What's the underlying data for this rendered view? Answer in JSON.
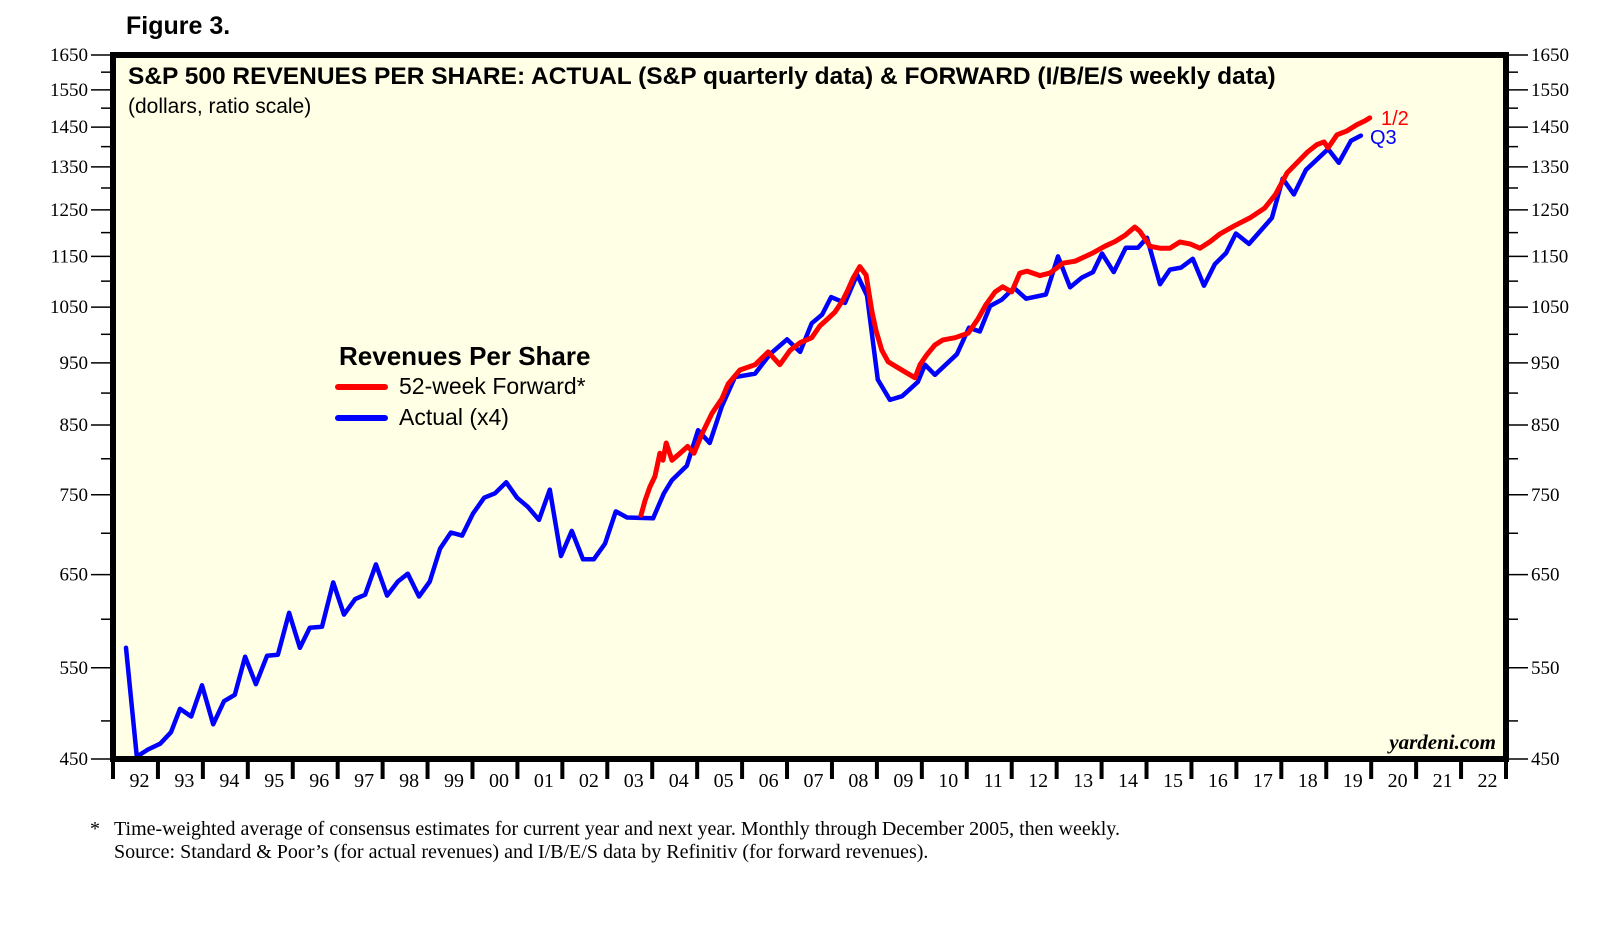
{
  "figure_label": "Figure 3.",
  "footnote": {
    "marker": "*",
    "line1": "Time-weighted average of consensus estimates for current year and next year. Monthly through December 2005, then weekly.",
    "line2": "Source: Standard & Poor’s (for actual revenues) and I/B/E/S data by Refinitiv (for forward revenues)."
  },
  "colors": {
    "background": "#ffffe6",
    "forward": "#ff0000",
    "actual": "#0000ff",
    "frame": "#000000"
  },
  "chart_data": {
    "type": "line",
    "title": "S&P 500 REVENUES PER SHARE: ACTUAL (S&P quarterly data) & FORWARD (I/B/E/S weekly data)",
    "subtitle": "(dollars, ratio scale)",
    "xlabel": "",
    "ylabel": "",
    "yscale": "log",
    "ylim": [
      467,
      1650
    ],
    "xlim": [
      1992,
      2023
    ],
    "y_ticks": [
      450,
      550,
      650,
      750,
      850,
      950,
      1050,
      1150,
      1250,
      1350,
      1450,
      1550,
      1650
    ],
    "x_tick_labels": [
      "92",
      "93",
      "94",
      "95",
      "96",
      "97",
      "98",
      "99",
      "00",
      "01",
      "02",
      "03",
      "04",
      "05",
      "06",
      "07",
      "08",
      "09",
      "10",
      "11",
      "12",
      "13",
      "14",
      "15",
      "16",
      "17",
      "18",
      "19",
      "20",
      "21",
      "22"
    ],
    "grid": false,
    "legend": {
      "title": "Revenues Per Share",
      "placement": "center-left",
      "entries": [
        {
          "label": "52-week Forward*",
          "series": "forward"
        },
        {
          "label": "Actual (x4)",
          "series": "actual"
        }
      ]
    },
    "annotations": [
      {
        "text": "1/2",
        "series": "forward"
      },
      {
        "text": "Q3",
        "series": "actual"
      }
    ],
    "watermark": "yardeni.com",
    "series": [
      {
        "name": "forward",
        "label": "52-week Forward*",
        "x": [
          2003.75,
          2003.84,
          2003.95,
          2004.06,
          2004.17,
          2004.24,
          2004.31,
          2004.44,
          2004.62,
          2004.79,
          2004.93,
          2005.11,
          2005.33,
          2005.55,
          2005.69,
          2005.95,
          2006.29,
          2006.58,
          2006.84,
          2007.07,
          2007.29,
          2007.55,
          2007.73,
          2007.89,
          2008.07,
          2008.24,
          2008.35,
          2008.47,
          2008.62,
          2008.76,
          2008.89,
          2008.98,
          2009.11,
          2009.25,
          2009.4,
          2009.62,
          2009.85,
          2009.96,
          2010.11,
          2010.29,
          2010.47,
          2010.74,
          2011.03,
          2011.25,
          2011.43,
          2011.63,
          2011.8,
          2012.0,
          2012.18,
          2012.34,
          2012.63,
          2012.85,
          2013.14,
          2013.41,
          2013.78,
          2014.07,
          2014.3,
          2014.52,
          2014.74,
          2014.85,
          2015.08,
          2015.3,
          2015.52,
          2015.74,
          2015.97,
          2016.19,
          2016.42,
          2016.63,
          2016.96,
          2017.3,
          2017.63,
          2017.87,
          2018.13,
          2018.35,
          2018.59,
          2018.79,
          2018.95,
          2019.04,
          2019.24,
          2019.46,
          2019.68,
          2019.86,
          2019.97
        ],
        "values": [
          723,
          742,
          761,
          775,
          808,
          798,
          823,
          798,
          808,
          818,
          808,
          837,
          868,
          891,
          915,
          938,
          947,
          969,
          947,
          972,
          985,
          994,
          1015,
          1027,
          1041,
          1063,
          1082,
          1106,
          1129,
          1112,
          1041,
          1007,
          972,
          952,
          945,
          935,
          925,
          947,
          964,
          981,
          990,
          994,
          1002,
          1028,
          1055,
          1079,
          1089,
          1079,
          1116,
          1120,
          1111,
          1116,
          1136,
          1140,
          1156,
          1171,
          1181,
          1194,
          1212,
          1203,
          1171,
          1167,
          1167,
          1180,
          1176,
          1167,
          1181,
          1197,
          1215,
          1232,
          1254,
          1285,
          1336,
          1360,
          1387,
          1405,
          1412,
          1397,
          1430,
          1440,
          1456,
          1466,
          1474
        ]
      },
      {
        "name": "actual",
        "label": "Actual (x4)",
        "x": [
          1992.29,
          1992.53,
          1992.78,
          1993.05,
          1993.29,
          1993.49,
          1993.74,
          1993.98,
          1994.23,
          1994.47,
          1994.71,
          1994.94,
          1995.18,
          1995.43,
          1995.67,
          1995.92,
          1996.16,
          1996.38,
          1996.65,
          1996.9,
          1997.14,
          1997.39,
          1997.61,
          1997.85,
          1998.1,
          1998.34,
          1998.56,
          1998.81,
          1999.05,
          1999.28,
          1999.52,
          1999.77,
          2000.01,
          2000.26,
          2000.5,
          2000.75,
          2000.99,
          2001.23,
          2001.48,
          2001.72,
          2001.97,
          2002.21,
          2002.46,
          2002.7,
          2002.95,
          2003.19,
          2003.44,
          2004.02,
          2004.26,
          2004.44,
          2004.77,
          2005.02,
          2005.28,
          2005.55,
          2005.84,
          2006.29,
          2006.62,
          2007.0,
          2007.29,
          2007.55,
          2007.78,
          2007.98,
          2008.29,
          2008.56,
          2008.78,
          2009.02,
          2009.29,
          2009.56,
          2009.91,
          2010.07,
          2010.29,
          2010.78,
          2011.05,
          2011.29,
          2011.52,
          2011.78,
          2012.05,
          2012.32,
          2012.76,
          2013.03,
          2013.3,
          2013.56,
          2013.81,
          2014.01,
          2014.27,
          2014.54,
          2014.81,
          2015.01,
          2015.3,
          2015.52,
          2015.77,
          2016.03,
          2016.28,
          2016.52,
          2016.77,
          2016.99,
          2017.28,
          2017.79,
          2018.03,
          2018.28,
          2018.55,
          2019.04,
          2019.28,
          2019.55,
          2019.77
        ],
        "values": [
          570,
          469,
          475,
          480,
          490,
          511,
          504,
          533,
          497,
          518,
          524,
          561,
          534,
          562,
          563,
          607,
          570,
          591,
          592,
          641,
          605,
          622,
          627,
          662,
          626,
          642,
          651,
          625,
          642,
          681,
          701,
          697,
          725,
          746,
          752,
          767,
          746,
          734,
          717,
          757,
          672,
          703,
          668,
          668,
          687,
          728,
          720,
          719,
          752,
          770,
          790,
          842,
          823,
          879,
          926,
          932,
          965,
          991,
          969,
          1020,
          1036,
          1069,
          1058,
          1113,
          1072,
          922,
          889,
          895,
          918,
          947,
          930,
          965,
          1012,
          1005,
          1052,
          1064,
          1087,
          1066,
          1074,
          1150,
          1088,
          1107,
          1118,
          1156,
          1118,
          1168,
          1168,
          1189,
          1094,
          1123,
          1127,
          1145,
          1091,
          1134,
          1157,
          1198,
          1176,
          1232,
          1322,
          1285,
          1343,
          1394,
          1360,
          1415,
          1428
        ]
      }
    ]
  }
}
